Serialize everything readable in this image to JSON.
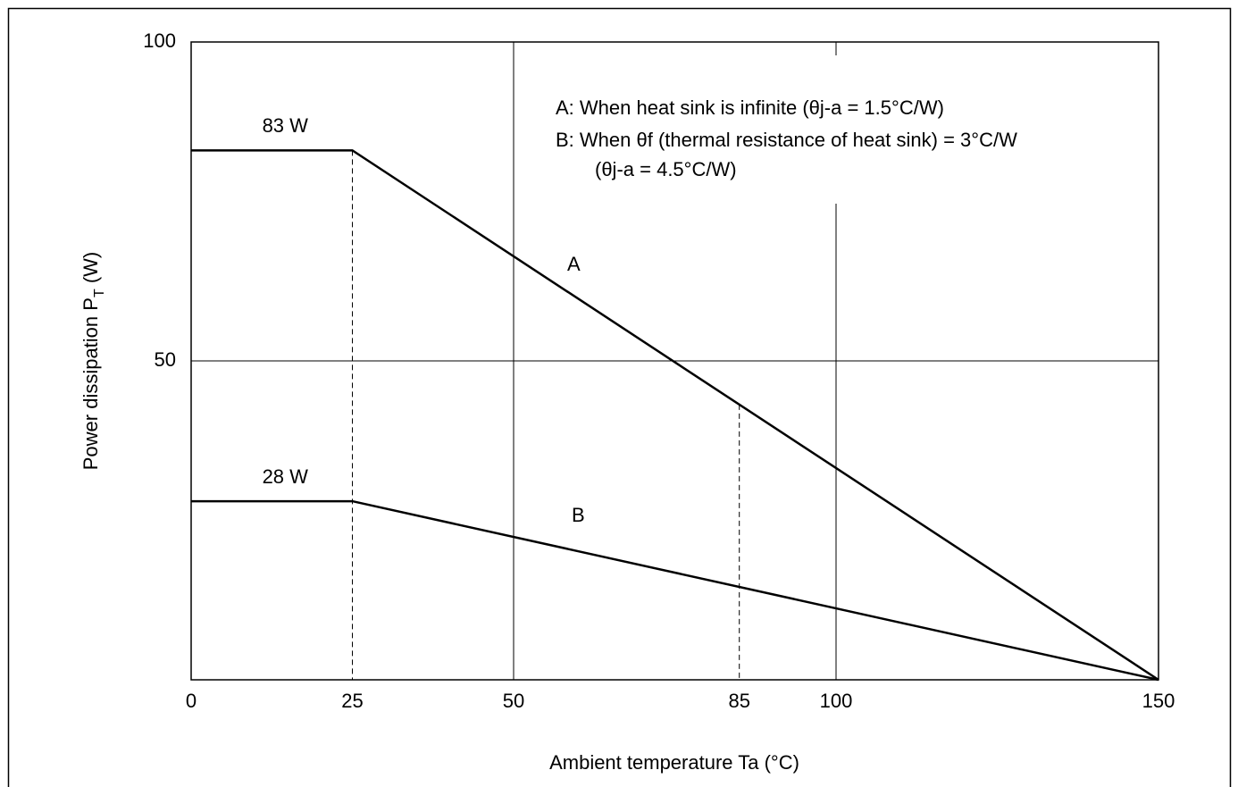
{
  "chart_data": {
    "type": "line",
    "x_label": "Ambient temperature Ta     (°C)",
    "y_label": {
      "text": "Power dissipation  P",
      "sub": "T",
      "unit": " (W)"
    },
    "annotations": [
      "A: When heat sink is infinite (θj-a = 1.5°C/W)",
      "B: When θf (thermal resistance of heat sink) = 3°C/W",
      "(θj-a = 4.5°C/W)"
    ],
    "x": [
      0,
      25,
      150
    ],
    "series": [
      {
        "name": "A",
        "color": "#000000",
        "values": [
          83,
          83,
          0
        ],
        "value_labels": [
          "83 W",
          null,
          null
        ]
      },
      {
        "name": "B",
        "color": "#000000",
        "values": [
          28,
          28,
          0
        ],
        "value_labels": [
          "28 W",
          null,
          null
        ]
      }
    ],
    "xlim": [
      0,
      150
    ],
    "ylim": [
      0,
      100
    ],
    "xticks": [
      0,
      25,
      50,
      85,
      100,
      150
    ],
    "xgrid_style": [
      "none",
      "dashed",
      "solid",
      "dashed",
      "solid",
      "none"
    ],
    "yticks": [
      50,
      100
    ],
    "grid": true
  }
}
